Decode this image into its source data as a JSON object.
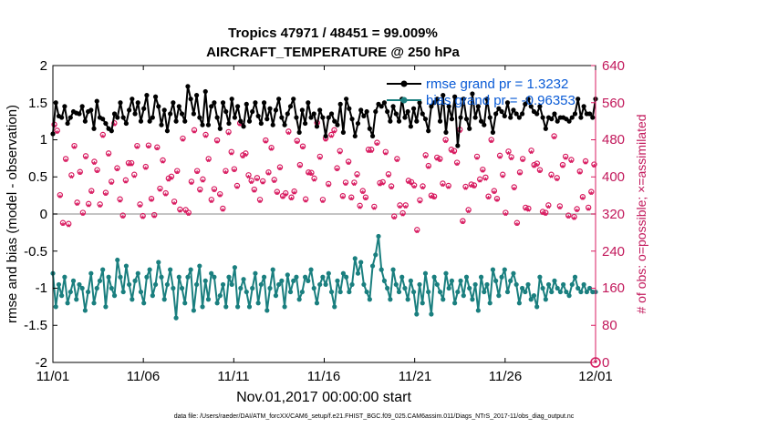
{
  "chart_data": {
    "type": "line",
    "title": "Tropics 47971 / 48451 = 99.009%",
    "subtitle": "AIRCRAFT_TEMPERATURE @ 250 hPa",
    "xlabel": "Nov.01,2017 00:00:00 start",
    "ylabel": "rmse and bias (model - observation)",
    "ylabel_right": "# of obs: o=possible; ×=assimilated",
    "footnote": "data file: /Users/raeder/DAI/ATM_forcXX/CAM6_setup/f.e21.FHIST_BGC.f09_025.CAM6assim.011/Diags_NTrS_2017-11/obs_diag_output.nc",
    "xlim": [
      0,
      30
    ],
    "ylim": [
      -2,
      2
    ],
    "ylim_right": [
      0,
      640
    ],
    "x_tick_labels": [
      "11/01",
      "11/06",
      "11/11",
      "11/16",
      "11/21",
      "11/26",
      "12/01"
    ],
    "y_tick_labels": [
      "2",
      "1.5",
      "1",
      "0.5",
      "0",
      "-0.5",
      "-1",
      "-1.5",
      "-2"
    ],
    "y_right_tick_labels": [
      "640",
      "560",
      "480",
      "400",
      "320",
      "240",
      "160",
      "80",
      "0"
    ],
    "legend": [
      {
        "label": "rmse grand pr = 1.3232",
        "color": "#000000"
      },
      {
        "label": "bias grand pr = -0.96353",
        "color": "#1a7f7f"
      }
    ],
    "colors": {
      "rmse": "#000000",
      "bias": "#1a7f7f",
      "obs": "#d81b60",
      "zero": "#b0b0b0"
    },
    "step_days": 0.25,
    "series": [
      {
        "name": "rmse",
        "values": [
          1.08,
          1.5,
          1.32,
          1.3,
          1.45,
          1.22,
          1.3,
          1.38,
          1.36,
          1.35,
          1.45,
          1.25,
          1.38,
          1.4,
          1.15,
          1.52,
          1.3,
          1.28,
          1.22,
          1.15,
          1.12,
          1.35,
          1.3,
          1.5,
          1.3,
          1.22,
          1.4,
          1.55,
          1.35,
          1.5,
          1.25,
          1.42,
          1.6,
          1.25,
          1.3,
          1.58,
          1.45,
          1.2,
          1.4,
          1.12,
          1.35,
          1.5,
          1.25,
          1.45,
          1.35,
          1.25,
          1.72,
          1.55,
          1.35,
          1.6,
          1.3,
          1.2,
          1.65,
          1.2,
          1.45,
          1.5,
          1.3,
          1.15,
          1.5,
          1.38,
          1.22,
          1.55,
          1.3,
          1.45,
          1.25,
          1.18,
          1.48,
          1.25,
          1.38,
          1.5,
          1.32,
          1.22,
          1.5,
          1.28,
          1.42,
          1.2,
          1.4,
          1.55,
          1.3,
          1.2,
          1.35,
          1.45,
          1.55,
          1.3,
          1.1,
          1.4,
          1.22,
          1.5,
          1.3,
          1.35,
          1.18,
          1.4,
          1.3,
          1.05,
          1.3,
          1.35,
          1.25,
          1.2,
          1.48,
          1.1,
          1.55,
          1.42,
          1.28,
          1.05,
          1.22,
          1.4,
          1.32,
          1.38,
          1.15,
          1.05,
          1.38,
          1.48,
          1.45,
          1.5,
          1.38,
          1.25,
          1.45,
          1.35,
          1.25,
          1.55,
          1.3,
          1.38,
          1.18,
          1.42,
          1.25,
          1.5,
          1.35,
          1.28,
          1.12,
          1.45,
          1.5,
          1.55,
          1.25,
          1.6,
          1.1,
          1.45,
          1.28,
          1.58,
          0.92,
          1.3,
          1.55,
          1.28,
          1.15,
          1.62,
          1.3,
          1.45,
          1.25,
          1.2,
          1.55,
          1.3,
          1.1,
          1.35,
          1.42,
          1.38,
          1.32,
          1.5,
          1.3,
          1.4,
          1.35,
          1.3,
          1.35,
          1.48,
          1.55,
          1.45,
          1.38,
          1.35,
          1.45,
          1.3,
          1.15,
          1.3,
          1.28,
          1.35,
          1.25,
          1.3,
          1.3,
          1.28,
          1.25,
          1.3,
          1.35,
          1.55,
          1.3,
          1.45,
          1.35,
          1.35,
          1.3,
          1.55
        ]
      },
      {
        "name": "bias",
        "values": [
          -0.8,
          -1.25,
          -0.95,
          -1.1,
          -0.85,
          -1.2,
          -1.05,
          -0.9,
          -1.15,
          -0.95,
          -1.0,
          -1.3,
          -1.05,
          -0.8,
          -1.2,
          -1.0,
          -0.9,
          -0.75,
          -1.25,
          -0.85,
          -1.0,
          -1.1,
          -0.62,
          -0.85,
          -1.05,
          -0.7,
          -0.95,
          -1.15,
          -0.9,
          -0.8,
          -1.05,
          -1.2,
          -0.85,
          -0.75,
          -1.1,
          -0.95,
          -0.65,
          -0.85,
          -1.15,
          -0.95,
          -0.75,
          -1.0,
          -1.4,
          -0.85,
          -1.0,
          -1.2,
          -0.85,
          -0.75,
          -1.3,
          -0.95,
          -0.7,
          -1.25,
          -0.9,
          -1.15,
          -0.8,
          -0.85,
          -1.2,
          -1.1,
          -0.95,
          -1.25,
          -0.85,
          -0.95,
          -0.72,
          -1.25,
          -1.0,
          -0.88,
          -1.05,
          -1.25,
          -1.0,
          -0.8,
          -1.2,
          -0.95,
          -0.85,
          -1.3,
          -1.0,
          -0.75,
          -1.1,
          -0.95,
          -0.9,
          -1.25,
          -0.82,
          -1.05,
          -0.9,
          -0.85,
          -1.15,
          -1.05,
          -0.85,
          -0.9,
          -0.75,
          -1.0,
          -1.2,
          -0.95,
          -0.85,
          -0.95,
          -0.8,
          -1.05,
          -1.25,
          -0.9,
          -1.05,
          -0.8,
          -0.85,
          -1.05,
          -0.95,
          -0.6,
          -0.8,
          -0.65,
          -0.95,
          -1.05,
          -1.15,
          -0.7,
          -0.55,
          -0.3,
          -0.75,
          -0.9,
          -1.0,
          -1.15,
          -0.75,
          -0.95,
          -1.05,
          -0.85,
          -1.0,
          -1.15,
          -0.9,
          -1.05,
          -1.35,
          -0.95,
          -1.2,
          -0.8,
          -1.05,
          -1.35,
          -0.85,
          -0.95,
          -1.05,
          -1.15,
          -0.8,
          -1.0,
          -0.9,
          -1.2,
          -1.05,
          -0.9,
          -1.1,
          -0.85,
          -1.0,
          -1.15,
          -0.95,
          -1.3,
          -0.85,
          -1.05,
          -0.95,
          -1.2,
          -0.75,
          -0.9,
          -1.1,
          -0.85,
          -0.75,
          -1.05,
          -0.9,
          -0.8,
          -0.95,
          -1.2,
          -1.0,
          -1.05,
          -0.95,
          -1.15,
          -1.1,
          -1.25,
          -0.85,
          -1.0,
          -1.15,
          -0.95,
          -1.05,
          -0.9,
          -1.0,
          -1.05,
          -0.95,
          -1.05,
          -1.1,
          -0.95,
          -0.85,
          -1.0,
          -1.05,
          -0.95,
          -1.05,
          -1.0,
          -1.05,
          -1.05
        ]
      }
    ],
    "obs_counts": [
      507,
      494,
      355,
      295,
      433,
      293,
      398,
      461,
      339,
      405,
      317,
      439,
      336,
      364,
      427,
      409,
      335,
      485,
      360,
      445,
      384,
      510,
      413,
      346,
      311,
      387,
      424,
      424,
      399,
      461,
      335,
      310,
      416,
      462,
      347,
      312,
      458,
      369,
      430,
      359,
      391,
      395,
      341,
      407,
      324,
      477,
      323,
      317,
      384,
      495,
      407,
      367,
      389,
      485,
      433,
      345,
      368,
      473,
      357,
      326,
      407,
      491,
      448,
      411,
      375,
      510,
      441,
      445,
      398,
      386,
      367,
      392,
      345,
      385,
      473,
      404,
      457,
      388,
      362,
      415,
      353,
      359,
      492,
      350,
      363,
      472,
      420,
      460,
      346,
      404,
      403,
      391,
      511,
      438,
      345,
      477,
      379,
      485,
      495,
      413,
      450,
      353,
      382,
      427,
      350,
      382,
      400,
      332,
      364,
      350,
      453,
      453,
      330,
      468,
      381,
      383,
      448,
      400,
      374,
      309,
      433,
      333,
      316,
      333,
      386,
      383,
      376,
      280,
      344,
      374,
      441,
      418,
      354,
      352,
      436,
      433,
      380,
      474,
      375,
      453,
      450,
      425,
      496,
      299,
      373,
      323,
      378,
      376,
      438,
      389,
      410,
      393,
      352,
      474,
      364,
      347,
      440,
      399,
      317,
      449,
      437,
      372,
      295,
      404,
      433,
      328,
      326,
      451,
      420,
      423,
      409,
      319,
      317,
      333,
      399,
      482,
      392,
      331,
      420,
      438,
      311,
      431,
      308,
      325,
      406,
      351,
      428,
      328,
      362,
      421
    ]
  }
}
